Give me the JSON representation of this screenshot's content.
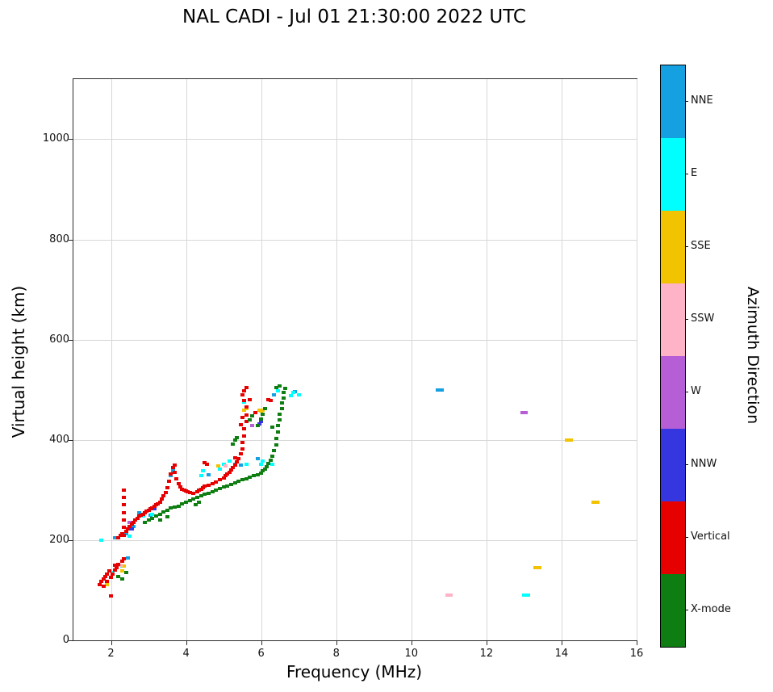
{
  "title": "NAL CADI - Jul 01 21:30:00 2022 UTC",
  "chart_data": {
    "type": "scatter",
    "title": "NAL CADI - Jul 01 21:30:00 2022 UTC",
    "xlabel": "Frequency (MHz)",
    "ylabel": "Virtual height (km)",
    "legend_title": "Azimuth Direction",
    "legend_position": "right-colorbar",
    "grid": true,
    "xlim": [
      1,
      16
    ],
    "ylim": [
      0,
      1120
    ],
    "xticks": [
      2,
      4,
      6,
      8,
      10,
      12,
      14,
      16
    ],
    "yticks": [
      0,
      200,
      400,
      600,
      800,
      1000
    ],
    "series": [
      {
        "name": "NNE",
        "color": "#15a0e1",
        "points": [
          [
            2.1,
            205
          ],
          [
            2.4,
            212
          ],
          [
            2.45,
            165
          ],
          [
            2.6,
            228
          ],
          [
            2.75,
            255
          ],
          [
            3.05,
            250
          ],
          [
            3.6,
            328
          ],
          [
            3.65,
            338
          ],
          [
            4.6,
            330
          ],
          [
            5.3,
            352
          ],
          [
            5.45,
            350
          ],
          [
            5.9,
            362
          ],
          [
            6.35,
            490
          ],
          [
            6.9,
            497
          ],
          [
            10.7,
            500
          ],
          [
            10.8,
            500
          ]
        ]
      },
      {
        "name": "E",
        "color": "#00ffff",
        "points": [
          [
            1.75,
            200
          ],
          [
            2.05,
            135
          ],
          [
            2.3,
            148
          ],
          [
            2.5,
            208
          ],
          [
            2.85,
            248
          ],
          [
            3.1,
            252
          ],
          [
            4.4,
            328
          ],
          [
            4.45,
            338
          ],
          [
            4.9,
            342
          ],
          [
            5.0,
            352
          ],
          [
            5.15,
            358
          ],
          [
            5.55,
            475
          ],
          [
            5.6,
            352
          ],
          [
            6.0,
            352
          ],
          [
            6.05,
            357
          ],
          [
            6.3,
            352
          ],
          [
            6.45,
            498
          ],
          [
            6.8,
            488
          ],
          [
            6.85,
            494
          ],
          [
            7.0,
            490
          ],
          [
            13.0,
            90
          ],
          [
            13.1,
            90
          ]
        ]
      },
      {
        "name": "SSE",
        "color": "#f2c300",
        "points": [
          [
            1.9,
            112
          ],
          [
            2.3,
            138
          ],
          [
            2.35,
            148
          ],
          [
            4.85,
            348
          ],
          [
            5.55,
            460
          ],
          [
            5.6,
            462
          ],
          [
            5.95,
            460
          ],
          [
            6.0,
            458
          ],
          [
            6.05,
            460
          ],
          [
            13.3,
            145
          ],
          [
            13.4,
            145
          ],
          [
            14.15,
            400
          ],
          [
            14.25,
            400
          ],
          [
            14.85,
            275
          ],
          [
            14.95,
            275
          ]
        ]
      },
      {
        "name": "SSW",
        "color": "#ffb3c6",
        "points": [
          [
            2.25,
            150
          ],
          [
            5.05,
            348
          ],
          [
            10.95,
            90
          ],
          [
            11.05,
            90
          ]
        ]
      },
      {
        "name": "W",
        "color": "#b55ed6",
        "points": [
          [
            2.5,
            235
          ],
          [
            5.75,
            428
          ],
          [
            12.95,
            455
          ],
          [
            13.05,
            455
          ]
        ]
      },
      {
        "name": "NNW",
        "color": "#3636e0",
        "points": [
          [
            2.55,
            222
          ],
          [
            3.15,
            262
          ],
          [
            5.95,
            432
          ],
          [
            6.0,
            436
          ]
        ]
      },
      {
        "name": "Vertical",
        "color": "#e60000",
        "points": [
          [
            1.7,
            112
          ],
          [
            1.75,
            118
          ],
          [
            1.8,
            108
          ],
          [
            1.8,
            122
          ],
          [
            1.85,
            128
          ],
          [
            1.9,
            118
          ],
          [
            1.9,
            132
          ],
          [
            1.95,
            138
          ],
          [
            2.0,
            88
          ],
          [
            2.0,
            125
          ],
          [
            2.05,
            132
          ],
          [
            2.1,
            140
          ],
          [
            2.1,
            150
          ],
          [
            2.15,
            145
          ],
          [
            2.2,
            152
          ],
          [
            2.3,
            158
          ],
          [
            2.35,
            162
          ],
          [
            2.35,
            210
          ],
          [
            2.35,
            225
          ],
          [
            2.35,
            240
          ],
          [
            2.35,
            255
          ],
          [
            2.35,
            270
          ],
          [
            2.35,
            285
          ],
          [
            2.35,
            300
          ],
          [
            2.2,
            205
          ],
          [
            2.25,
            210
          ],
          [
            2.3,
            212
          ],
          [
            2.4,
            218
          ],
          [
            2.45,
            222
          ],
          [
            2.5,
            228
          ],
          [
            2.55,
            232
          ],
          [
            2.6,
            236
          ],
          [
            2.65,
            240
          ],
          [
            2.7,
            244
          ],
          [
            2.75,
            248
          ],
          [
            2.8,
            250
          ],
          [
            2.85,
            252
          ],
          [
            2.9,
            255
          ],
          [
            2.95,
            258
          ],
          [
            3.0,
            260
          ],
          [
            3.05,
            262
          ],
          [
            3.1,
            265
          ],
          [
            3.15,
            268
          ],
          [
            3.2,
            270
          ],
          [
            3.25,
            272
          ],
          [
            3.3,
            276
          ],
          [
            3.35,
            282
          ],
          [
            3.4,
            288
          ],
          [
            3.45,
            295
          ],
          [
            3.5,
            305
          ],
          [
            3.55,
            318
          ],
          [
            3.6,
            332
          ],
          [
            3.65,
            345
          ],
          [
            3.7,
            350
          ],
          [
            3.7,
            335
          ],
          [
            3.75,
            322
          ],
          [
            3.8,
            312
          ],
          [
            3.85,
            306
          ],
          [
            3.9,
            302
          ],
          [
            3.95,
            300
          ],
          [
            4.0,
            298
          ],
          [
            4.05,
            296
          ],
          [
            4.1,
            295
          ],
          [
            4.2,
            294
          ],
          [
            4.3,
            296
          ],
          [
            4.35,
            300
          ],
          [
            4.4,
            302
          ],
          [
            4.45,
            305
          ],
          [
            4.5,
            308
          ],
          [
            4.5,
            355
          ],
          [
            4.55,
            352
          ],
          [
            4.6,
            310
          ],
          [
            4.7,
            313
          ],
          [
            4.8,
            316
          ],
          [
            4.9,
            320
          ],
          [
            5.0,
            324
          ],
          [
            5.05,
            328
          ],
          [
            5.1,
            332
          ],
          [
            5.15,
            336
          ],
          [
            5.2,
            340
          ],
          [
            5.25,
            345
          ],
          [
            5.3,
            350
          ],
          [
            5.3,
            365
          ],
          [
            5.35,
            356
          ],
          [
            5.4,
            363
          ],
          [
            5.45,
            372
          ],
          [
            5.45,
            430
          ],
          [
            5.5,
            382
          ],
          [
            5.5,
            395
          ],
          [
            5.5,
            445
          ],
          [
            5.55,
            408
          ],
          [
            5.55,
            422
          ],
          [
            5.6,
            436
          ],
          [
            5.6,
            450
          ],
          [
            5.6,
            465
          ],
          [
            5.55,
            478
          ],
          [
            5.5,
            490
          ],
          [
            5.55,
            498
          ],
          [
            5.6,
            505
          ],
          [
            5.7,
            480
          ],
          [
            5.85,
            455
          ],
          [
            6.2,
            480
          ],
          [
            6.25,
            478
          ]
        ]
      },
      {
        "name": "X-mode",
        "color": "#0e7d12",
        "points": [
          [
            2.2,
            128
          ],
          [
            2.3,
            122
          ],
          [
            2.4,
            135
          ],
          [
            2.9,
            235
          ],
          [
            3.0,
            240
          ],
          [
            3.1,
            244
          ],
          [
            3.2,
            248
          ],
          [
            3.3,
            252
          ],
          [
            3.3,
            240
          ],
          [
            3.4,
            256
          ],
          [
            3.5,
            260
          ],
          [
            3.5,
            247
          ],
          [
            3.6,
            264
          ],
          [
            3.7,
            266
          ],
          [
            3.8,
            268
          ],
          [
            3.9,
            272
          ],
          [
            4.0,
            276
          ],
          [
            4.1,
            279
          ],
          [
            4.2,
            282
          ],
          [
            4.25,
            270
          ],
          [
            4.3,
            285
          ],
          [
            4.35,
            275
          ],
          [
            4.4,
            288
          ],
          [
            4.5,
            291
          ],
          [
            4.6,
            294
          ],
          [
            4.7,
            297
          ],
          [
            4.8,
            300
          ],
          [
            4.9,
            303
          ],
          [
            5.0,
            306
          ],
          [
            5.1,
            308
          ],
          [
            5.2,
            311
          ],
          [
            5.25,
            392
          ],
          [
            5.3,
            314
          ],
          [
            5.3,
            400
          ],
          [
            5.35,
            405
          ],
          [
            5.4,
            317
          ],
          [
            5.5,
            320
          ],
          [
            5.6,
            322
          ],
          [
            5.7,
            325
          ],
          [
            5.7,
            440
          ],
          [
            5.75,
            448
          ],
          [
            5.8,
            328
          ],
          [
            5.9,
            331
          ],
          [
            5.9,
            428
          ],
          [
            6.0,
            334
          ],
          [
            6.0,
            442
          ],
          [
            6.05,
            338
          ],
          [
            6.05,
            452
          ],
          [
            6.1,
            342
          ],
          [
            6.1,
            462
          ],
          [
            6.15,
            347
          ],
          [
            6.2,
            353
          ],
          [
            6.25,
            360
          ],
          [
            6.3,
            368
          ],
          [
            6.3,
            425
          ],
          [
            6.35,
            378
          ],
          [
            6.4,
            390
          ],
          [
            6.4,
            403
          ],
          [
            6.45,
            415
          ],
          [
            6.45,
            428
          ],
          [
            6.5,
            440
          ],
          [
            6.5,
            452
          ],
          [
            6.55,
            463
          ],
          [
            6.55,
            474
          ],
          [
            6.6,
            484
          ],
          [
            6.6,
            494
          ],
          [
            6.65,
            503
          ],
          [
            6.5,
            508
          ],
          [
            6.4,
            505
          ]
        ]
      }
    ]
  }
}
